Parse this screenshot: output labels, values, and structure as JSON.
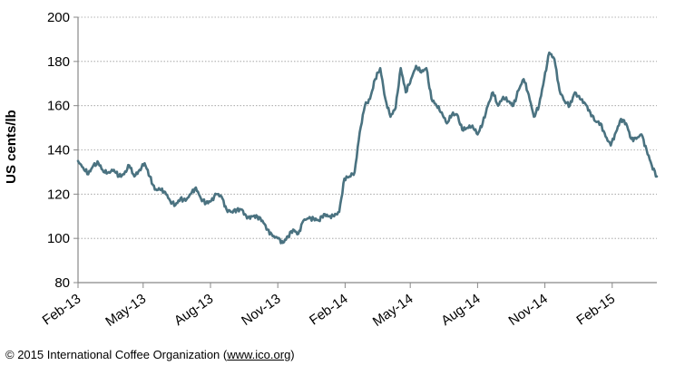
{
  "chart_data": {
    "type": "line",
    "title": "",
    "xlabel": "",
    "ylabel": "US cents/lb",
    "ylim": [
      80,
      200
    ],
    "yticks": [
      80,
      100,
      120,
      140,
      160,
      180,
      200
    ],
    "xlim": [
      "2013-02-01",
      "2015-04-03"
    ],
    "xtick_labels": [
      "Feb-13",
      "May-13",
      "Aug-13",
      "Nov-13",
      "Feb-14",
      "May-14",
      "Aug-14",
      "Nov-14",
      "Feb-15"
    ],
    "xtick_dates": [
      "2013-02-01",
      "2013-05-01",
      "2013-08-01",
      "2013-11-01",
      "2014-02-01",
      "2014-05-01",
      "2014-08-01",
      "2014-11-01",
      "2015-02-01"
    ],
    "grid": "horizontal dotted",
    "legend": "none",
    "line_color": "#4a7280",
    "series": [
      {
        "x": [
          "2013-02-01",
          "2013-02-08",
          "2013-02-15",
          "2013-02-22",
          "2013-03-01",
          "2013-03-08",
          "2013-03-15",
          "2013-03-22",
          "2013-03-29",
          "2013-04-05",
          "2013-04-12",
          "2013-04-19",
          "2013-04-26",
          "2013-05-03",
          "2013-05-10",
          "2013-05-17",
          "2013-05-24",
          "2013-05-31",
          "2013-06-07",
          "2013-06-14",
          "2013-06-21",
          "2013-06-28",
          "2013-07-05",
          "2013-07-12",
          "2013-07-19",
          "2013-07-26",
          "2013-08-02",
          "2013-08-09",
          "2013-08-16",
          "2013-08-23",
          "2013-08-30",
          "2013-09-06",
          "2013-09-13",
          "2013-09-20",
          "2013-09-27",
          "2013-10-04",
          "2013-10-11",
          "2013-10-18",
          "2013-10-25",
          "2013-11-01",
          "2013-11-08",
          "2013-11-15",
          "2013-11-22",
          "2013-11-29",
          "2013-12-06",
          "2013-12-13",
          "2013-12-20",
          "2013-12-27",
          "2014-01-03",
          "2014-01-10",
          "2014-01-17",
          "2014-01-24",
          "2014-01-31",
          "2014-02-07",
          "2014-02-14",
          "2014-02-21",
          "2014-02-28",
          "2014-03-07",
          "2014-03-14",
          "2014-03-21",
          "2014-03-28",
          "2014-04-04",
          "2014-04-11",
          "2014-04-18",
          "2014-04-25",
          "2014-05-02",
          "2014-05-09",
          "2014-05-16",
          "2014-05-23",
          "2014-05-30",
          "2014-06-06",
          "2014-06-13",
          "2014-06-20",
          "2014-06-27",
          "2014-07-04",
          "2014-07-11",
          "2014-07-18",
          "2014-07-25",
          "2014-08-01",
          "2014-08-08",
          "2014-08-15",
          "2014-08-22",
          "2014-08-29",
          "2014-09-05",
          "2014-09-12",
          "2014-09-19",
          "2014-09-26",
          "2014-10-03",
          "2014-10-10",
          "2014-10-17",
          "2014-10-24",
          "2014-10-31",
          "2014-11-07",
          "2014-11-14",
          "2014-11-21",
          "2014-11-28",
          "2014-12-05",
          "2014-12-12",
          "2014-12-19",
          "2014-12-26",
          "2015-01-02",
          "2015-01-09",
          "2015-01-16",
          "2015-01-23",
          "2015-01-30",
          "2015-02-06",
          "2015-02-13",
          "2015-02-20",
          "2015-02-27",
          "2015-03-06",
          "2015-03-13",
          "2015-03-20",
          "2015-03-27",
          "2015-04-03"
        ],
        "values": [
          135,
          132,
          129,
          133,
          134,
          130,
          130,
          131,
          128,
          129,
          133,
          128,
          131,
          134,
          128,
          122,
          122,
          121,
          117,
          115,
          118,
          117,
          120,
          123,
          118,
          116,
          117,
          120,
          119,
          113,
          112,
          113,
          113,
          109,
          110,
          110,
          108,
          104,
          101,
          100,
          98,
          101,
          104,
          102,
          108,
          109,
          109,
          108,
          111,
          110,
          110,
          112,
          127,
          128,
          130,
          148,
          160,
          163,
          172,
          177,
          163,
          155,
          159,
          177,
          166,
          172,
          178,
          175,
          177,
          163,
          160,
          157,
          152,
          156,
          156,
          149,
          150,
          151,
          147,
          152,
          160,
          166,
          160,
          164,
          162,
          160,
          167,
          172,
          165,
          155,
          160,
          172,
          184,
          181,
          167,
          162,
          160,
          166,
          163,
          161,
          157,
          153,
          152,
          146,
          142,
          148,
          154,
          152,
          145,
          145,
          147,
          140,
          133,
          128
        ]
      }
    ]
  },
  "footer": {
    "text": "© 2015 International Coffee Organization (",
    "link": "www.ico.org",
    "close": ")"
  }
}
